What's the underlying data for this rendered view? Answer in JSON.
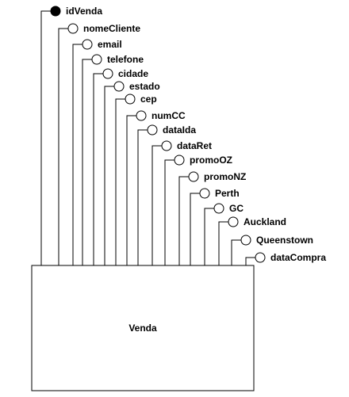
{
  "entity": {
    "name": "Venda"
  },
  "attributes": [
    {
      "name": "idVenda",
      "key": true
    },
    {
      "name": "nomeCliente",
      "key": false
    },
    {
      "name": "email",
      "key": false
    },
    {
      "name": "telefone",
      "key": false
    },
    {
      "name": "cidade",
      "key": false
    },
    {
      "name": "estado",
      "key": false
    },
    {
      "name": "cep",
      "key": false
    },
    {
      "name": "numCC",
      "key": false
    },
    {
      "name": "dataIda",
      "key": false
    },
    {
      "name": "dataRet",
      "key": false
    },
    {
      "name": "promoOZ",
      "key": false
    },
    {
      "name": "promoNZ",
      "key": false
    },
    {
      "name": "Perth",
      "key": false
    },
    {
      "name": "GC",
      "key": false
    },
    {
      "name": "Auckland",
      "key": false
    },
    {
      "name": "Queenstown",
      "key": false
    },
    {
      "name": "dataCompra",
      "key": false
    }
  ]
}
